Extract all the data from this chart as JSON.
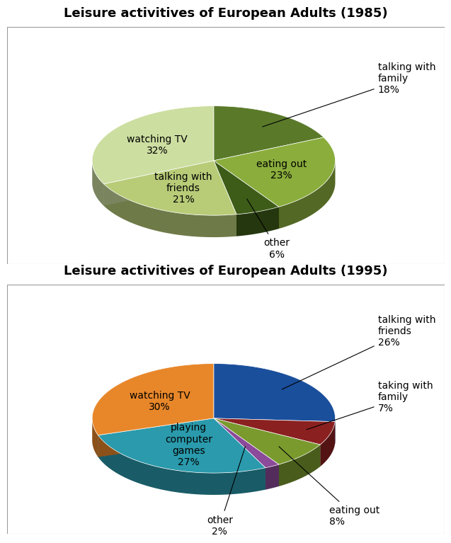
{
  "chart1": {
    "title": "Leisure activitives of European Adults (1985)",
    "labels": [
      "talking with\nfamily",
      "eating out",
      "other",
      "talking with\nfriends",
      "watching TV"
    ],
    "values": [
      18,
      23,
      6,
      21,
      32
    ],
    "colors": [
      "#5a7a2a",
      "#8aad3c",
      "#3d5c18",
      "#b8cc78",
      "#ccdea0"
    ],
    "startangle": 90
  },
  "chart2": {
    "title": "Leisure activitives of European Adults (1995)",
    "labels": [
      "talking with\nfriends",
      "taking with\nfamily",
      "eating out",
      "other",
      "playing\ncomputer\ngames",
      "watching TV"
    ],
    "values": [
      26,
      7,
      8,
      2,
      27,
      30
    ],
    "colors": [
      "#1a4f9c",
      "#8b2020",
      "#7a9a2e",
      "#8b4a9a",
      "#2a9aac",
      "#e8872a"
    ],
    "startangle": 90
  },
  "background_color": "#ffffff",
  "title_fontsize": 13,
  "label_fontsize": 10,
  "3d_depth": 0.18,
  "ellipse_yscale": 0.45
}
